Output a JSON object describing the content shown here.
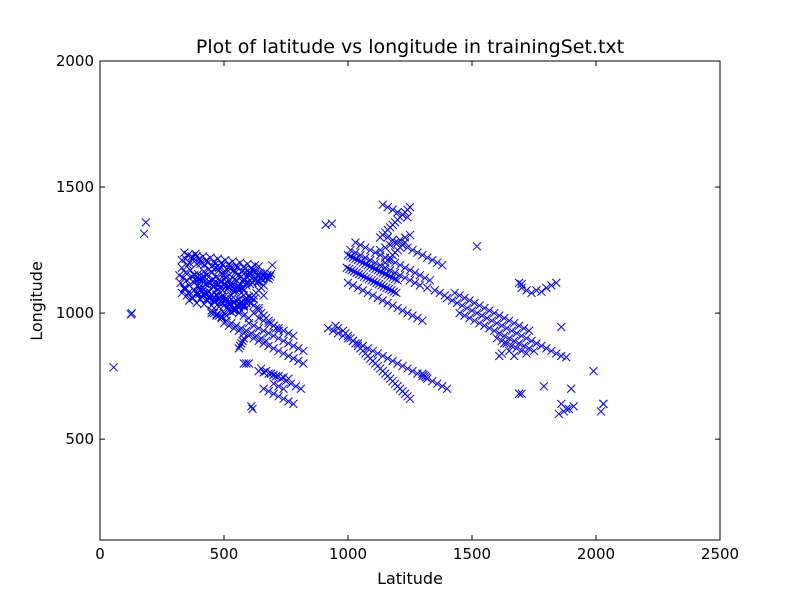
{
  "chart_data": {
    "type": "scatter",
    "title": "Plot of latitude vs longitude in trainingSet.txt",
    "xlabel": "Latitude",
    "ylabel": "Longitude",
    "xlim": [
      0,
      2500
    ],
    "ylim": [
      100,
      2000
    ],
    "xticks": [
      0,
      500,
      1000,
      1500,
      2000,
      2500
    ],
    "yticks": [
      500,
      1000,
      1500,
      2000
    ],
    "marker": "x",
    "color": "#0000ff",
    "grid": false,
    "x": [
      55,
      125,
      128,
      178,
      185,
      320,
      325,
      330,
      335,
      340,
      345,
      350,
      355,
      360,
      365,
      370,
      375,
      380,
      385,
      390,
      395,
      400,
      405,
      410,
      415,
      420,
      425,
      430,
      435,
      440,
      445,
      450,
      455,
      460,
      465,
      470,
      475,
      480,
      485,
      490,
      495,
      500,
      505,
      510,
      515,
      520,
      525,
      530,
      535,
      540,
      545,
      550,
      555,
      560,
      565,
      570,
      575,
      580,
      585,
      590,
      595,
      600,
      605,
      610,
      615,
      620,
      625,
      630,
      635,
      640,
      645,
      650,
      655,
      660,
      665,
      670,
      675,
      680,
      685,
      690,
      695,
      330,
      340,
      350,
      360,
      370,
      380,
      390,
      400,
      410,
      420,
      430,
      440,
      450,
      460,
      470,
      480,
      490,
      500,
      510,
      520,
      530,
      540,
      550,
      560,
      570,
      580,
      590,
      600,
      610,
      620,
      330,
      345,
      360,
      375,
      390,
      405,
      420,
      435,
      450,
      465,
      480,
      495,
      510,
      525,
      540,
      555,
      570,
      585,
      600,
      615,
      630,
      645,
      660,
      340,
      355,
      370,
      385,
      400,
      415,
      430,
      445,
      460,
      475,
      490,
      505,
      520,
      535,
      550,
      565,
      580,
      595,
      610,
      625,
      640,
      360,
      375,
      390,
      405,
      420,
      435,
      450,
      465,
      480,
      495,
      510,
      525,
      540,
      555,
      570,
      380,
      395,
      410,
      425,
      440,
      455,
      470,
      485,
      500,
      515,
      530,
      545,
      560,
      575,
      590,
      605,
      620,
      635,
      650,
      380,
      390,
      400,
      410,
      420,
      430,
      440,
      450,
      460,
      470,
      480,
      490,
      500,
      510,
      520,
      530,
      540,
      550,
      560,
      570,
      580,
      590,
      600,
      610,
      620,
      630,
      640,
      650,
      660,
      380,
      390,
      400,
      410,
      420,
      440,
      460,
      480,
      500,
      520,
      540,
      560,
      580,
      450,
      460,
      470,
      480,
      490,
      500,
      510,
      520,
      530,
      540,
      550,
      560,
      570,
      580,
      590,
      600,
      420,
      440,
      460,
      480,
      500,
      520,
      540,
      560,
      580,
      600,
      620,
      640,
      660,
      500,
      510,
      520,
      530,
      540,
      550,
      560,
      570,
      580,
      590,
      600,
      610,
      620,
      630,
      640,
      650,
      660,
      670,
      680,
      690,
      700,
      710,
      720,
      450,
      470,
      490,
      510,
      530,
      550,
      570,
      590,
      610,
      630,
      650,
      670,
      500,
      520,
      540,
      560,
      580,
      600,
      620,
      640,
      660,
      680,
      700,
      720,
      740,
      760,
      780,
      800,
      820,
      640,
      660,
      680,
      700,
      720,
      740,
      760,
      780,
      600,
      620,
      640,
      660,
      680,
      700,
      720,
      740,
      760,
      780,
      800,
      820,
      650,
      670,
      690,
      710,
      730,
      750,
      770,
      790,
      810,
      610,
      615,
      660,
      680,
      700,
      720,
      740,
      760,
      780,
      700,
      720,
      740,
      640,
      660,
      680,
      700,
      720,
      740,
      760,
      580,
      590,
      600,
      560,
      565,
      570,
      575,
      580,
      910,
      935,
      950,
      960,
      980,
      990,
      1000,
      1010,
      1020,
      1030,
      1040,
      1050,
      1060,
      1070,
      1080,
      1090,
      1100,
      1110,
      1120,
      1130,
      1140,
      1150,
      1160,
      1170,
      1180,
      1190,
      1200,
      1210,
      1220,
      1230,
      1240,
      1250,
      1000,
      1010,
      1020,
      1030,
      1040,
      1050,
      1060,
      1070,
      1080,
      1090,
      1100,
      1110,
      1120,
      1130,
      1140,
      1150,
      1160,
      1170,
      1180,
      1190,
      1200,
      995,
      1005,
      1015,
      1025,
      1035,
      1045,
      1055,
      1065,
      1075,
      1085,
      1095,
      1105,
      1115,
      1125,
      1135,
      1145,
      1155,
      1165,
      1175,
      1185,
      1195,
      1000,
      1020,
      1040,
      1060,
      1080,
      1100,
      1120,
      1140,
      1160,
      1180,
      1200,
      1220,
      1240,
      1260,
      1280,
      1300,
      1010,
      1030,
      1050,
      1070,
      1090,
      1110,
      1130,
      1150,
      1170,
      1190,
      1210,
      1230,
      1250,
      1270,
      1290,
      1320,
      1350,
      1370,
      1390,
      920,
      940,
      960,
      980,
      1000,
      1020,
      1040,
      1060,
      1080,
      1100,
      1120,
      1140,
      1160,
      1180,
      1200,
      1220,
      1240,
      1260,
      1280,
      1300,
      1320,
      1340,
      1360,
      1380,
      1400,
      1030,
      1050,
      1070,
      1090,
      1110,
      1130,
      1150,
      1170,
      1190,
      1210,
      1230,
      1250,
      1270,
      1290,
      1310,
      1330,
      1130,
      1140,
      1150,
      1160,
      1170,
      1180,
      1190,
      1200,
      1210,
      1220,
      1230,
      1240,
      1250,
      1140,
      1160,
      1180,
      1200,
      1220,
      1240,
      1130,
      1150,
      1170,
      1190,
      1210,
      1230,
      1250,
      1160,
      1180,
      1200,
      1220,
      1240,
      1260,
      1280,
      1300,
      1320,
      1340,
      1360,
      1380,
      1300,
      1305,
      1310,
      1315,
      1400,
      1420,
      1440,
      1460,
      1480,
      1500,
      1520,
      1540,
      1560,
      1580,
      1600,
      1620,
      1640,
      1660,
      1680,
      1700,
      1720,
      1740,
      1760,
      1780,
      1800,
      1820,
      1840,
      1860,
      1430,
      1450,
      1470,
      1490,
      1510,
      1530,
      1550,
      1570,
      1590,
      1610,
      1630,
      1650,
      1670,
      1690,
      1710,
      1730,
      1450,
      1470,
      1490,
      1510,
      1530,
      1550,
      1570,
      1590,
      1610,
      1630,
      1650,
      1670,
      1690,
      1710,
      1730,
      1750,
      1600,
      1620,
      1640,
      1660,
      1680,
      1700,
      1720,
      1610,
      1620,
      1630,
      1650,
      1670,
      1690,
      1700,
      1790,
      1860,
      1880,
      1900,
      1990,
      2030,
      1520,
      1690,
      1700,
      1860,
      1880,
      1850,
      1870,
      1890,
      1910,
      2020,
      2030,
      1700,
      1720,
      1740,
      1760,
      1780,
      1800,
      1820,
      1840,
      1150,
      1160,
      1170,
      1180,
      1190,
      1200,
      1210,
      1220,
      1230
    ],
    "y": [
      785,
      995,
      1000,
      1315,
      1360,
      1150,
      1120,
      1180,
      1140,
      1100,
      1160,
      1130,
      1190,
      1110,
      1170,
      1145,
      1125,
      1205,
      1135,
      1225,
      1155,
      1115,
      1195,
      1140,
      1100,
      1165,
      1130,
      1150,
      1110,
      1175,
      1120,
      1160,
      1135,
      1105,
      1180,
      1145,
      1095,
      1170,
      1125,
      1155,
      1090,
      1135,
      1165,
      1110,
      1145,
      1100,
      1175,
      1120,
      1140,
      1085,
      1160,
      1130,
      1105,
      1150,
      1115,
      1145,
      1125,
      1135,
      1160,
      1110,
      1140,
      1150,
      1130,
      1155,
      1120,
      1145,
      1160,
      1135,
      1150,
      1125,
      1140,
      1155,
      1130,
      1145,
      1160,
      1140,
      1150,
      1135,
      1145,
      1155,
      1190,
      1080,
      1095,
      1070,
      1085,
      1060,
      1090,
      1075,
      1100,
      1065,
      1080,
      1055,
      1085,
      1070,
      1045,
      1075,
      1060,
      1040,
      1065,
      1050,
      1035,
      1070,
      1045,
      1030,
      1055,
      1040,
      1025,
      1050,
      1065,
      1040,
      1055,
      1210,
      1215,
      1200,
      1220,
      1195,
      1205,
      1190,
      1200,
      1185,
      1195,
      1180,
      1190,
      1175,
      1185,
      1170,
      1180,
      1165,
      1175,
      1160,
      1170,
      1165,
      1160,
      1155,
      1240,
      1230,
      1225,
      1235,
      1215,
      1225,
      1210,
      1220,
      1205,
      1215,
      1200,
      1210,
      1195,
      1205,
      1190,
      1200,
      1185,
      1195,
      1180,
      1190,
      1185,
      1050,
      1060,
      1040,
      1055,
      1035,
      1050,
      1030,
      1045,
      1025,
      1040,
      1020,
      1035,
      1015,
      1030,
      1010,
      1120,
      1110,
      1130,
      1115,
      1125,
      1105,
      1120,
      1100,
      1115,
      1095,
      1110,
      1090,
      1105,
      1100,
      1120,
      1115,
      1130,
      1125,
      1140,
      1090,
      1080,
      1075,
      1085,
      1070,
      1080,
      1065,
      1075,
      1060,
      1070,
      1055,
      1065,
      1050,
      1060,
      1045,
      1055,
      1040,
      1050,
      1035,
      1045,
      1030,
      1040,
      1050,
      1060,
      1070,
      1080,
      1090,
      1100,
      1110,
      1150,
      1140,
      1135,
      1130,
      1145,
      1125,
      1120,
      1115,
      1110,
      1105,
      1100,
      1095,
      1090,
      1010,
      1000,
      995,
      990,
      985,
      1000,
      990,
      1010,
      1005,
      1020,
      1015,
      1025,
      1030,
      1035,
      1040,
      1045,
      1070,
      1060,
      1050,
      1040,
      1030,
      1020,
      1010,
      1000,
      990,
      980,
      1000,
      1020,
      1070,
      1150,
      1140,
      1130,
      1120,
      1110,
      1100,
      1090,
      1080,
      1070,
      1060,
      1050,
      1040,
      1030,
      1020,
      1010,
      1000,
      990,
      980,
      970,
      960,
      950,
      940,
      930,
      1000,
      990,
      980,
      970,
      960,
      950,
      940,
      930,
      920,
      910,
      900,
      890,
      960,
      950,
      940,
      930,
      920,
      910,
      900,
      890,
      880,
      870,
      860,
      850,
      840,
      830,
      820,
      810,
      800,
      980,
      970,
      960,
      950,
      940,
      930,
      920,
      910,
      960,
      950,
      940,
      930,
      920,
      910,
      900,
      890,
      880,
      870,
      860,
      850,
      780,
      770,
      760,
      750,
      740,
      730,
      720,
      710,
      700,
      630,
      620,
      700,
      690,
      680,
      670,
      660,
      650,
      640,
      720,
      710,
      700,
      770,
      765,
      760,
      755,
      750,
      745,
      740,
      800,
      800,
      800,
      860,
      870,
      880,
      890,
      900,
      1350,
      1355,
      950,
      940,
      930,
      920,
      910,
      900,
      890,
      880,
      870,
      860,
      850,
      840,
      830,
      820,
      810,
      800,
      790,
      780,
      770,
      760,
      750,
      740,
      730,
      720,
      710,
      700,
      690,
      680,
      670,
      660,
      1230,
      1225,
      1220,
      1215,
      1210,
      1205,
      1200,
      1195,
      1190,
      1185,
      1180,
      1175,
      1170,
      1165,
      1160,
      1155,
      1150,
      1145,
      1140,
      1135,
      1130,
      1180,
      1175,
      1170,
      1165,
      1160,
      1155,
      1150,
      1145,
      1140,
      1135,
      1130,
      1125,
      1120,
      1115,
      1110,
      1105,
      1100,
      1095,
      1090,
      1085,
      1080,
      1120,
      1110,
      1100,
      1090,
      1080,
      1070,
      1060,
      1050,
      1040,
      1030,
      1020,
      1010,
      1000,
      990,
      980,
      970,
      1250,
      1240,
      1230,
      1220,
      1210,
      1200,
      1190,
      1180,
      1170,
      1160,
      1150,
      1140,
      1130,
      1120,
      1110,
      1100,
      1090,
      1080,
      1070,
      940,
      930,
      920,
      910,
      900,
      890,
      880,
      870,
      860,
      850,
      840,
      830,
      820,
      810,
      800,
      790,
      780,
      770,
      760,
      750,
      740,
      730,
      720,
      710,
      700,
      1280,
      1270,
      1260,
      1250,
      1240,
      1230,
      1220,
      1210,
      1200,
      1190,
      1180,
      1170,
      1160,
      1150,
      1140,
      1130,
      1300,
      1310,
      1320,
      1330,
      1340,
      1350,
      1360,
      1370,
      1380,
      1390,
      1400,
      1410,
      1420,
      1430,
      1420,
      1410,
      1400,
      1390,
      1380,
      1250,
      1260,
      1270,
      1280,
      1290,
      1300,
      1310,
      1300,
      1290,
      1280,
      1270,
      1260,
      1250,
      1240,
      1230,
      1220,
      1210,
      1200,
      1190,
      760,
      755,
      750,
      745,
      1060,
      1050,
      1040,
      1030,
      1020,
      1010,
      1000,
      990,
      980,
      970,
      960,
      950,
      940,
      930,
      920,
      910,
      900,
      890,
      880,
      870,
      860,
      850,
      840,
      830,
      1080,
      1070,
      1060,
      1050,
      1040,
      1030,
      1020,
      1010,
      1000,
      990,
      980,
      970,
      960,
      950,
      940,
      930,
      1000,
      990,
      980,
      970,
      960,
      950,
      940,
      930,
      920,
      910,
      900,
      890,
      880,
      870,
      860,
      850,
      900,
      890,
      880,
      870,
      860,
      850,
      840,
      830,
      840,
      880,
      850,
      830,
      680,
      680,
      710,
      640,
      620,
      700,
      770,
      640,
      1265,
      1120,
      1115,
      945,
      825,
      600,
      610,
      620,
      630,
      610,
      640,
      1100,
      1090,
      1080,
      1090,
      1085,
      1100,
      1110,
      1120,
      1200,
      1210,
      1220,
      1230,
      1240,
      1250,
      1260,
      1270,
      1280
    ]
  }
}
